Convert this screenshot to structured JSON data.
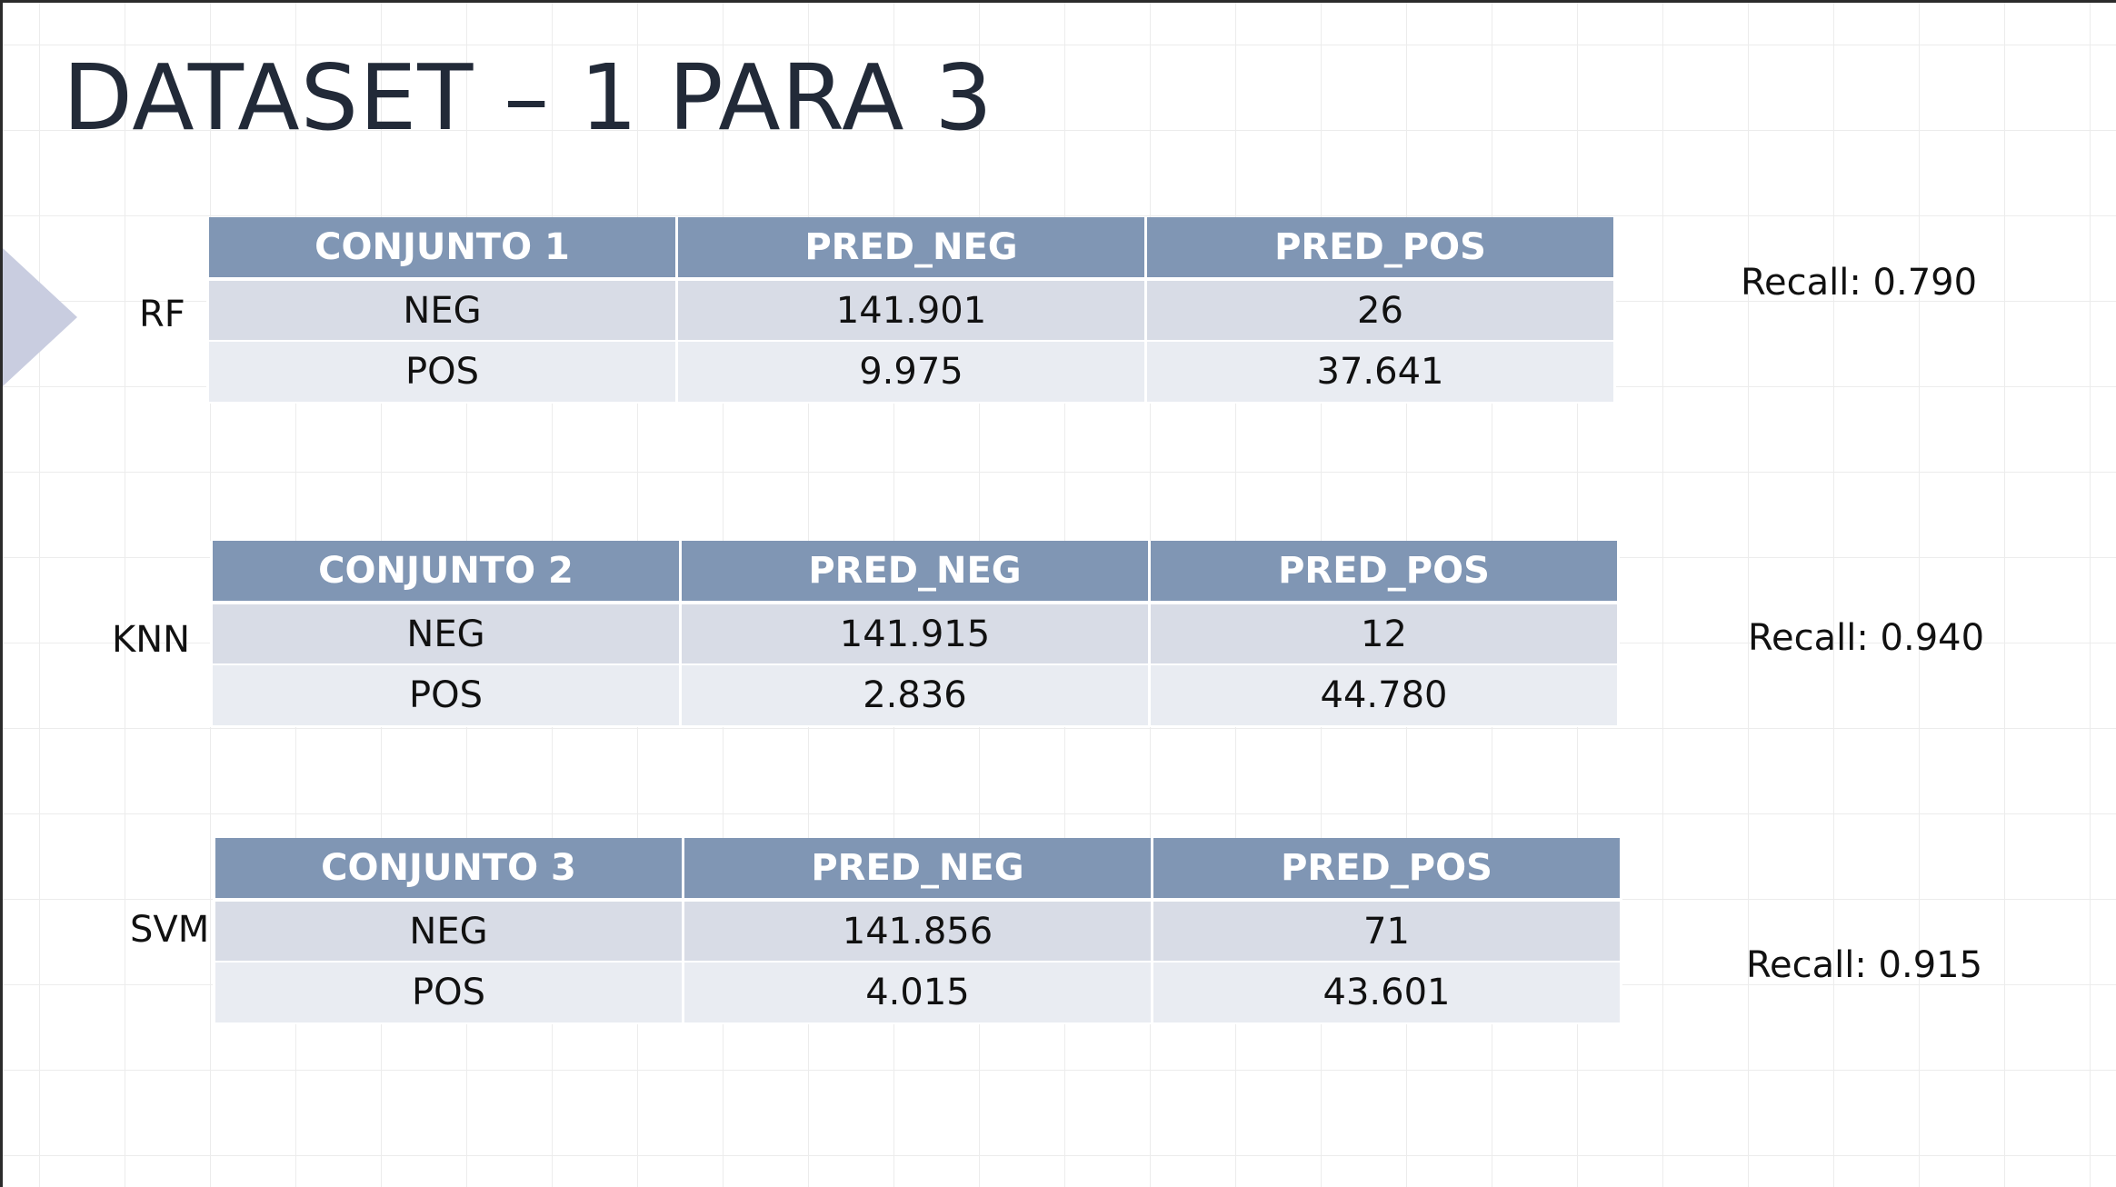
{
  "slide": {
    "title": "DATASET – 1 PARA 3"
  },
  "tables": [
    {
      "model": "RF",
      "headers": [
        "CONJUNTO 1",
        "PRED_NEG",
        "PRED_POS"
      ],
      "rows": [
        [
          "NEG",
          "141.901",
          "26"
        ],
        [
          "POS",
          "9.975",
          "37.641"
        ]
      ],
      "recall": "Recall: 0.790"
    },
    {
      "model": "KNN",
      "headers": [
        "CONJUNTO 2",
        "PRED_NEG",
        "PRED_POS"
      ],
      "rows": [
        [
          "NEG",
          "141.915",
          "12"
        ],
        [
          "POS",
          "2.836",
          "44.780"
        ]
      ],
      "recall": "Recall: 0.940"
    },
    {
      "model": "SVM",
      "headers": [
        "CONJUNTO 3",
        "PRED_NEG",
        "PRED_POS"
      ],
      "rows": [
        [
          "NEG",
          "141.856",
          "71"
        ],
        [
          "POS",
          "4.015",
          "43.601"
        ]
      ],
      "recall": "Recall: 0.915"
    }
  ],
  "colors": {
    "header_bg": "#8096b4",
    "row_odd_bg": "#d8dce6",
    "row_even_bg": "#e9ecf2",
    "arrow": "#c9cde0",
    "title": "#222a38"
  }
}
